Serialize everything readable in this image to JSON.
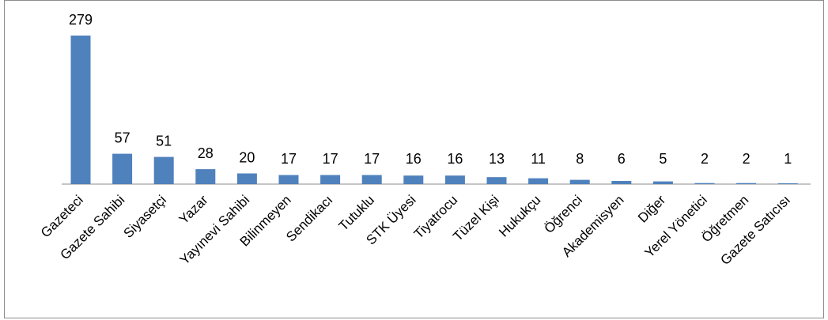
{
  "chart_data": {
    "type": "bar",
    "categories": [
      "Gazeteci",
      "Gazete Sahibi",
      "Siyasetçi",
      "Yazar",
      "Yayınevi Sahibi",
      "Bilinmeyen",
      "Sendikacı",
      "Tutuklu",
      "STK Üyesi",
      "Tiyatrocu",
      "Tüzel Kişi",
      "Hukukçu",
      "Öğrenci",
      "Akademisyen",
      "Diğer",
      "Yerel Yönetici",
      "Öğretmen",
      "Gazete Satıcısı"
    ],
    "values": [
      279,
      57,
      51,
      28,
      20,
      17,
      17,
      17,
      16,
      16,
      13,
      11,
      8,
      6,
      5,
      2,
      2,
      1
    ],
    "title": "",
    "xlabel": "",
    "ylabel": "",
    "ylim": [
      0,
      279
    ],
    "grid": false,
    "legend": "none",
    "bar_color": "#4f81bd",
    "data_labels": true
  }
}
